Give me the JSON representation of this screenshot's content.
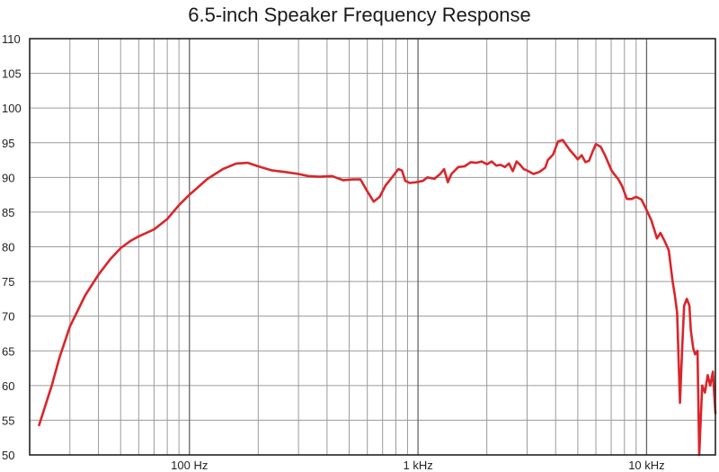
{
  "chart_data": {
    "type": "line",
    "title": "6.5-inch Speaker Frequency Response",
    "xlabel": "",
    "ylabel": "",
    "xscale": "log",
    "xlim": [
      20,
      20000
    ],
    "ylim": [
      50,
      110
    ],
    "y_ticks": [
      "50",
      "55",
      "60",
      "65",
      "70",
      "75",
      "80",
      "85",
      "90",
      "95",
      "100",
      "105",
      "110"
    ],
    "x_tick_labels": [
      {
        "value": 100,
        "label": "100 Hz"
      },
      {
        "value": 1000,
        "label": "1 kHz"
      },
      {
        "value": 10000,
        "label": "10 kHz"
      }
    ],
    "grid": true,
    "line_color": "#d9262b",
    "series": [
      {
        "x": [
          22,
          25,
          27,
          30,
          35,
          40,
          45,
          50,
          55,
          60,
          70,
          80,
          90,
          100,
          120,
          140,
          160,
          180,
          200,
          230,
          260,
          300,
          330,
          370,
          420,
          470,
          520,
          560,
          600,
          640,
          680,
          720,
          770,
          820,
          850,
          880,
          920,
          980,
          1050,
          1100,
          1180,
          1250,
          1300,
          1350,
          1400,
          1500,
          1600,
          1700,
          1800,
          1900,
          2000,
          2100,
          2200,
          2300,
          2400,
          2500,
          2600,
          2700,
          2800,
          2900,
          3000,
          3200,
          3400,
          3600,
          3700,
          3900,
          4100,
          4300,
          4600,
          4800,
          5000,
          5200,
          5400,
          5600,
          5800,
          6000,
          6300,
          6600,
          7000,
          7200,
          7500,
          7800,
          8200,
          8600,
          9000,
          9500,
          10000,
          10500,
          10800,
          11100,
          11500,
          12000,
          12500,
          13000,
          13300,
          13600,
          14000,
          14300,
          14600,
          15000,
          15400,
          15600,
          16000,
          16300,
          16700,
          17000,
          17500,
          18000,
          18500,
          19000,
          19500,
          20000
        ],
        "y": [
          54.3,
          60,
          64,
          68.5,
          73,
          76,
          78.2,
          79.8,
          80.8,
          81.5,
          82.5,
          84,
          86,
          87.5,
          89.8,
          91.2,
          92,
          92.1,
          91.6,
          91,
          90.8,
          90.5,
          90.2,
          90.1,
          90.2,
          89.6,
          89.7,
          89.7,
          88,
          86.5,
          87.2,
          88.8,
          90,
          91.2,
          91,
          89.5,
          89.2,
          89.3,
          89.5,
          90,
          89.8,
          90.5,
          91.2,
          89.3,
          90.5,
          91.5,
          91.6,
          92.2,
          92.1,
          92.3,
          91.9,
          92.3,
          91.7,
          91.8,
          91.5,
          92,
          90.9,
          92.3,
          91.8,
          91.2,
          91,
          90.5,
          90.8,
          91.4,
          92.5,
          93.3,
          95.2,
          95.4,
          94,
          93.3,
          92.6,
          93.2,
          92.2,
          92.4,
          93.7,
          94.8,
          94.4,
          93.1,
          91.1,
          90.5,
          89.8,
          88.8,
          86.9,
          86.9,
          87.2,
          86.8,
          85.3,
          83.8,
          82.5,
          81.2,
          82,
          80.8,
          79.5,
          75,
          73,
          70.5,
          57.5,
          65,
          71.5,
          72.5,
          71.5,
          68,
          65.3,
          64.5,
          65,
          50,
          60,
          59,
          61.5,
          60,
          62,
          56
        ]
      }
    ]
  }
}
